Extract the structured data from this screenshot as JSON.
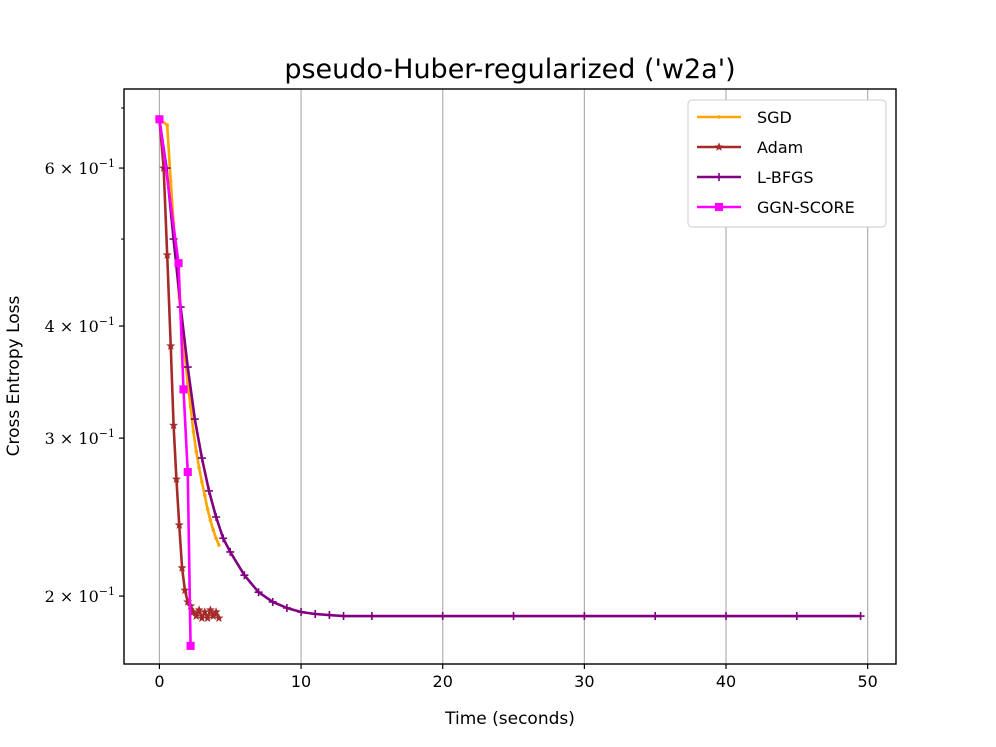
{
  "chart_data": {
    "type": "line",
    "title": "pseudo-Huber-regularized ('w2a')",
    "xlabel": "Time (seconds)",
    "ylabel": "Cross Entropy Loss",
    "xlim": [
      -2.5,
      52
    ],
    "ylim": [
      0.168,
      0.735
    ],
    "yscale": "log",
    "grid": "x-major",
    "legend_position": "top-right",
    "xticks": [
      0,
      10,
      20,
      30,
      40,
      50
    ],
    "xtick_labels": [
      "0",
      "10",
      "20",
      "30",
      "40",
      "50"
    ],
    "yticks": [
      0.2,
      0.3,
      0.4,
      0.6
    ],
    "ytick_labels": [
      {
        "mant": "2",
        "exp": "−1"
      },
      {
        "mant": "3",
        "exp": "−1"
      },
      {
        "mant": "4",
        "exp": "−1"
      },
      {
        "mant": "6",
        "exp": "−1"
      }
    ],
    "yminor_ticks": [
      0.5,
      0.7
    ],
    "series": [
      {
        "name": "SGD",
        "color": "#FFA500",
        "marker": "dot",
        "x": [
          0.0,
          0.55,
          0.8,
          1.0,
          1.2,
          1.4,
          1.6,
          1.8,
          2.0,
          2.2,
          2.4,
          2.6,
          2.8,
          3.0,
          3.2,
          3.4,
          3.6,
          3.8,
          4.0,
          4.2
        ],
        "y": [
          0.68,
          0.67,
          0.58,
          0.52,
          0.47,
          0.43,
          0.4,
          0.37,
          0.345,
          0.325,
          0.305,
          0.29,
          0.278,
          0.268,
          0.259,
          0.25,
          0.243,
          0.237,
          0.232,
          0.228
        ]
      },
      {
        "name": "Adam",
        "color": "#A52A2A",
        "marker": "star",
        "x": [
          0.0,
          0.3,
          0.55,
          0.8,
          1.0,
          1.2,
          1.4,
          1.6,
          1.8,
          2.0,
          2.2,
          2.4,
          2.6,
          2.8,
          3.0,
          3.2,
          3.4,
          3.6,
          3.8,
          4.0,
          4.2
        ],
        "y": [
          0.68,
          0.6,
          0.48,
          0.38,
          0.31,
          0.27,
          0.24,
          0.215,
          0.203,
          0.197,
          0.195,
          0.192,
          0.19,
          0.193,
          0.189,
          0.192,
          0.189,
          0.193,
          0.19,
          0.192,
          0.189
        ]
      },
      {
        "name": "L-BFGS",
        "color": "#800080",
        "marker": "plus",
        "x": [
          0.0,
          0.5,
          1.0,
          1.5,
          2.0,
          2.5,
          3.0,
          3.5,
          4.0,
          4.5,
          5.0,
          6.0,
          7.0,
          8.0,
          9.0,
          10.0,
          11.0,
          12.0,
          13.0,
          15.0,
          20.0,
          25.0,
          30.0,
          35.0,
          40.0,
          45.0,
          49.5
        ],
        "y": [
          0.68,
          0.6,
          0.5,
          0.42,
          0.36,
          0.315,
          0.285,
          0.262,
          0.245,
          0.232,
          0.224,
          0.211,
          0.202,
          0.197,
          0.194,
          0.192,
          0.191,
          0.1905,
          0.19,
          0.19,
          0.19,
          0.19,
          0.19,
          0.19,
          0.19,
          0.19,
          0.19
        ]
      },
      {
        "name": "GGN-SCORE",
        "color": "#FF00FF",
        "marker": "square",
        "x": [
          0.0,
          1.35,
          1.7,
          2.0,
          2.2
        ],
        "y": [
          0.68,
          0.47,
          0.34,
          0.275,
          0.176
        ]
      }
    ]
  }
}
